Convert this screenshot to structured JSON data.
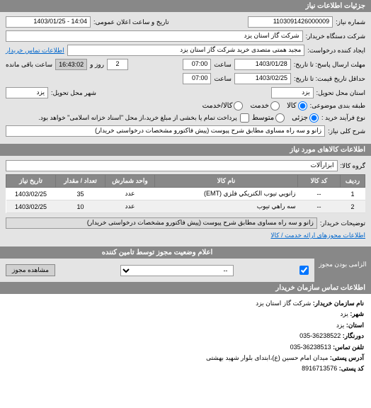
{
  "sections": {
    "main_header": "جزئیات اطلاعات نیاز",
    "goods_header": "اطلاعات کالاهای مورد نیاز",
    "permit_header": "اعلام وضعیت مجوز توسط تامین کننده",
    "contact_header": "اطلاعات تماس سازمان خریدار"
  },
  "fields": {
    "request_no_label": "شماره نیاز:",
    "request_no": "1103091426000009",
    "announce_label": "تاریخ و ساعت اعلان عمومی:",
    "announce": "14:04 - 1403/01/25",
    "buyer_org_label": "شرکت دستگاه خریدار:",
    "buyer_org": "شرکت گاز استان یزد",
    "creator_label": "ایجاد کننده درخواست:",
    "creator": "مجید همتی متصدی خرید شرکت گاز استان یزد",
    "contact_link": "اطلاعات تماس خریدار",
    "deadline_send_label": "مهلت ارسال پاسخ: تا تاریخ:",
    "deadline_send_date": "1403/01/28",
    "deadline_acc_label": "حداقل تاریخ قیمت: تا تاریخ:",
    "deadline_acc_date": "1403/02/25",
    "time_label": "ساعت",
    "time_val": "07:00",
    "days_val": "2",
    "remain_time": "16:43:02",
    "remain_label": "ساعت باقی مانده",
    "days_label": "روز و",
    "delivery_label": "استان محل تحویل:",
    "delivery_val": "یزد",
    "city_label": "شهر محل تحویل:",
    "city_val": "یزد",
    "budget_label": "طبقه بندی موضوعی:",
    "budget_kala": "کالا",
    "budget_khadamat": "خدمت",
    "budget_kalakhad": "کالا/خدمت",
    "contract_label": "نوع فرآیند خرید :",
    "contract_opt1": "جزئی",
    "contract_opt2": "متوسط",
    "contract_desc": "پرداخت تمام یا بخشی از مبلغ خرید،از محل \"اسناد خزانه اسلامی\" خواهد بود.",
    "desc_label": "شرح کلی نیاز:",
    "desc_val": "زانو و سه راه مساوی مطابق شرح پیوست (پیش فاکتورو مشخصات درخواستی خریدار)",
    "group_label": "گروه کالا:",
    "group_val": "ابزارآلات",
    "buyer_notes_label": "توضیحات خریدار:",
    "buyer_notes_val": "زانو و سه راه مساوی مطابق شرح پیوست (پیش فاکتورو مشخصات درخواستی خریدار)",
    "service_link": "اطلاعات مجوزهای ارائه خدمت / کالا",
    "permit_req_label": "الزامی بودن مجوز"
  },
  "table": {
    "columns": [
      "ردیف",
      "کد کالا",
      "نام کالا",
      "واحد شمارش",
      "تعداد / مقدار",
      "تاریخ نیاز"
    ],
    "rows": [
      [
        "1",
        "--",
        "زانويي تيوب الكتريكي فلزي (EMT)",
        "عدد",
        "35",
        "1403/02/25"
      ],
      [
        "2",
        "--",
        "سه راهي تيوب",
        "عدد",
        "10",
        "1403/02/25"
      ]
    ]
  },
  "permit_table": {
    "select_placeholder": "--",
    "view_btn": "مشاهده مجوز"
  },
  "contact": {
    "org_label": "نام سازمان خریدار:",
    "org": "شرکت گاز استان یزد",
    "city_label": "شهر:",
    "city": "یزد",
    "province_label": "استان:",
    "province": "یزد",
    "fax_label": "دورنگار:",
    "fax": "36238522-035",
    "phone_label": "تلفن تماس:",
    "phone": "36238513-035",
    "address_label": "آدرس پستی:",
    "address": "میدان امام حسین (ع)،ابتدای بلوار شهید بهشتی",
    "postal_label": "کد پستی:",
    "postal": "8916713576"
  },
  "checkbox_checked": true
}
